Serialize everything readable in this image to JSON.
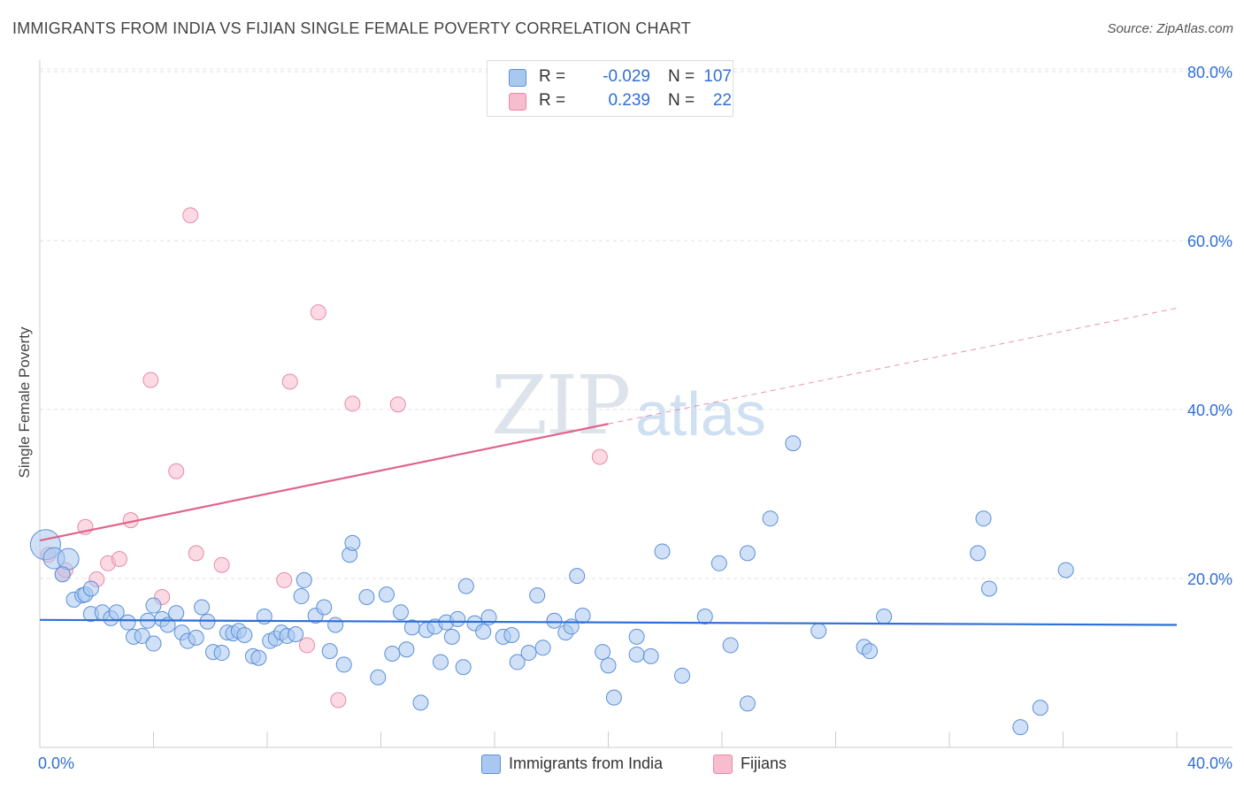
{
  "title": "IMMIGRANTS FROM INDIA VS FIJIAN SINGLE FEMALE POVERTY CORRELATION CHART",
  "source": "Source: ZipAtlas.com",
  "watermark": {
    "zip": "ZIP",
    "atlas": "atlas"
  },
  "legend": {
    "series1": {
      "r_label": "R =",
      "r_value": "-0.029",
      "n_label": "N =",
      "n_value": "107"
    },
    "series2": {
      "r_label": "R =",
      "r_value": "0.239",
      "n_label": "N =",
      "n_value": "22"
    }
  },
  "bottom_legend": {
    "india": "Immigrants from India",
    "fijians": "Fijians"
  },
  "colors": {
    "india_fill": "#a9c8f0",
    "india_stroke": "#5b8fd8",
    "india_line": "#2f6fd6",
    "fijian_fill": "#f7bccd",
    "fijian_stroke": "#e88aa6",
    "fijian_line": "#e0648b",
    "axis_text": "#2f6fd6",
    "grid": "#e2e2e2"
  },
  "chart_data": {
    "type": "scatter",
    "title": "IMMIGRANTS FROM INDIA VS FIJIAN SINGLE FEMALE POVERTY CORRELATION CHART",
    "xlabel": "",
    "ylabel": "Single Female Poverty",
    "xlim": [
      0,
      40
    ],
    "ylim": [
      0,
      82
    ],
    "x_tick_labels": [
      "0.0%",
      "40.0%"
    ],
    "y_ticks": [
      20,
      40,
      60,
      80
    ],
    "y_tick_labels": [
      "20.0%",
      "40.0%",
      "60.0%",
      "80.0%"
    ],
    "grid": true,
    "series": [
      {
        "name": "Immigrants from India",
        "r": -0.029,
        "n": 107,
        "trend": {
          "x0": 0,
          "y0": 15.1,
          "x1": 40,
          "y1": 14.5
        },
        "points": [
          [
            0.2,
            24,
            "xl"
          ],
          [
            0.5,
            22.4,
            "l"
          ],
          [
            1.0,
            22.3,
            "l"
          ],
          [
            0.8,
            20.5
          ],
          [
            1.2,
            17.5
          ],
          [
            1.5,
            18
          ],
          [
            1.6,
            18.1
          ],
          [
            1.8,
            18.8
          ],
          [
            1.8,
            15.8
          ],
          [
            2.2,
            16
          ],
          [
            2.5,
            15.3
          ],
          [
            2.7,
            16
          ],
          [
            3.1,
            14.8
          ],
          [
            3.3,
            13.1
          ],
          [
            3.6,
            13.2
          ],
          [
            3.8,
            15
          ],
          [
            4.0,
            12.3
          ],
          [
            4.0,
            16.8
          ],
          [
            4.3,
            15.2
          ],
          [
            4.5,
            14.5
          ],
          [
            4.8,
            15.9
          ],
          [
            5.0,
            13.6
          ],
          [
            5.2,
            12.6
          ],
          [
            5.5,
            13
          ],
          [
            5.7,
            16.6
          ],
          [
            5.9,
            14.9
          ],
          [
            6.1,
            11.3
          ],
          [
            6.4,
            11.2
          ],
          [
            6.6,
            13.6
          ],
          [
            6.8,
            13.5
          ],
          [
            7.0,
            13.8
          ],
          [
            7.2,
            13.3
          ],
          [
            7.5,
            10.8
          ],
          [
            7.7,
            10.6
          ],
          [
            7.9,
            15.5
          ],
          [
            8.1,
            12.6
          ],
          [
            8.3,
            12.9
          ],
          [
            8.5,
            13.6
          ],
          [
            8.7,
            13.2
          ],
          [
            9.0,
            13.4
          ],
          [
            9.2,
            17.9
          ],
          [
            9.3,
            19.8
          ],
          [
            9.7,
            15.6
          ],
          [
            10.0,
            16.6
          ],
          [
            10.2,
            11.4
          ],
          [
            10.4,
            14.5
          ],
          [
            10.7,
            9.8
          ],
          [
            10.9,
            22.8
          ],
          [
            11.0,
            24.2
          ],
          [
            11.5,
            17.8
          ],
          [
            11.9,
            8.3
          ],
          [
            12.2,
            18.1
          ],
          [
            12.4,
            11.1
          ],
          [
            12.7,
            16
          ],
          [
            12.9,
            11.6
          ],
          [
            13.1,
            14.2
          ],
          [
            13.4,
            5.3
          ],
          [
            13.6,
            13.9
          ],
          [
            13.9,
            14.3
          ],
          [
            14.1,
            10.1
          ],
          [
            14.3,
            14.8
          ],
          [
            14.5,
            13.1
          ],
          [
            14.7,
            15.2
          ],
          [
            14.9,
            9.5
          ],
          [
            15.0,
            19.1
          ],
          [
            15.3,
            14.7
          ],
          [
            15.6,
            13.7
          ],
          [
            15.8,
            15.4
          ],
          [
            16.3,
            13.1
          ],
          [
            16.6,
            13.3
          ],
          [
            16.8,
            10.1
          ],
          [
            17.2,
            11.2
          ],
          [
            17.5,
            18
          ],
          [
            17.7,
            11.8
          ],
          [
            18.1,
            15
          ],
          [
            18.5,
            13.6
          ],
          [
            18.7,
            14.3
          ],
          [
            18.9,
            20.3
          ],
          [
            19.1,
            15.6
          ],
          [
            19.8,
            11.3
          ],
          [
            20.0,
            9.7
          ],
          [
            20.2,
            5.9
          ],
          [
            21.0,
            13.1
          ],
          [
            21.0,
            11
          ],
          [
            21.5,
            10.8
          ],
          [
            21.9,
            23.2
          ],
          [
            22.6,
            8.5
          ],
          [
            23.4,
            15.5
          ],
          [
            23.9,
            21.8
          ],
          [
            24.3,
            12.1
          ],
          [
            24.9,
            5.2
          ],
          [
            24.9,
            23
          ],
          [
            25.7,
            27.1
          ],
          [
            26.5,
            36
          ],
          [
            27.4,
            13.8
          ],
          [
            29.0,
            11.9
          ],
          [
            29.2,
            11.4
          ],
          [
            29.7,
            15.5
          ],
          [
            33.0,
            23
          ],
          [
            33.2,
            27.1
          ],
          [
            33.4,
            18.8
          ],
          [
            34.5,
            2.4
          ],
          [
            35.2,
            4.7
          ],
          [
            36.1,
            21
          ]
        ]
      },
      {
        "name": "Fijians",
        "r": 0.239,
        "n": 22,
        "trend": {
          "x0": 0,
          "y0": 24.5,
          "x1": 20,
          "y1": 38.3,
          "dash_to_x": 40,
          "dash_to_y": 52
        },
        "points": [
          [
            0.3,
            22.8
          ],
          [
            0.8,
            20.5
          ],
          [
            0.9,
            21
          ],
          [
            1.6,
            26.1
          ],
          [
            2.0,
            19.9
          ],
          [
            2.4,
            21.8
          ],
          [
            2.8,
            22.3
          ],
          [
            3.2,
            26.9
          ],
          [
            3.9,
            43.5
          ],
          [
            4.3,
            17.8
          ],
          [
            4.8,
            32.7
          ],
          [
            5.3,
            63
          ],
          [
            5.5,
            23
          ],
          [
            6.4,
            21.6
          ],
          [
            8.6,
            19.8
          ],
          [
            8.8,
            43.3
          ],
          [
            9.4,
            12.1
          ],
          [
            9.8,
            51.5
          ],
          [
            10.5,
            5.6
          ],
          [
            11.0,
            40.7
          ],
          [
            12.6,
            40.6
          ],
          [
            19.7,
            34.4
          ]
        ]
      }
    ]
  }
}
